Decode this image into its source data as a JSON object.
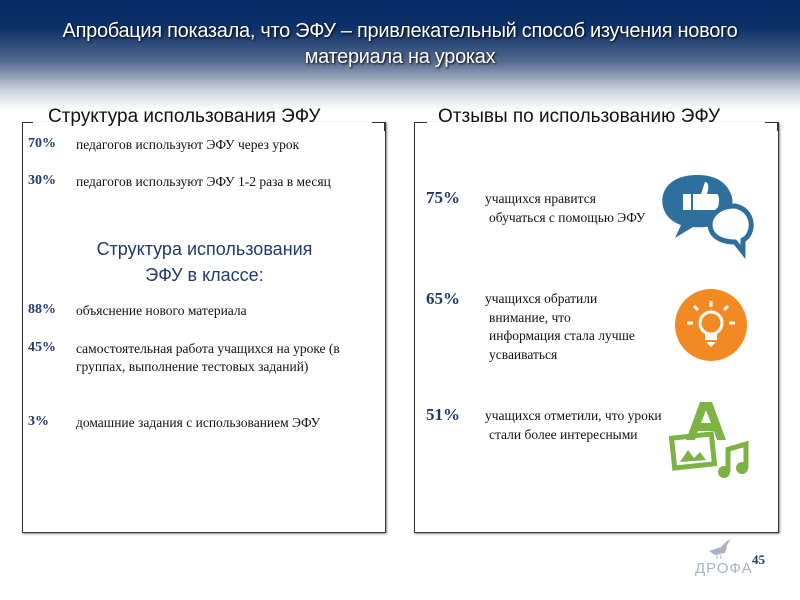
{
  "header": {
    "title": "Апробация показала, что ЭФУ – привлекательный способ изучения нового материала на уроках"
  },
  "left": {
    "title": "Структура использования ЭФУ",
    "items": [
      {
        "pct": "70%",
        "text": "педагогов используют ЭФУ через урок"
      },
      {
        "pct": "30%",
        "text": "педагогов используют ЭФУ 1-2 раза в месяц"
      }
    ],
    "subtitle": "Структура использования ЭФУ в классе:",
    "class_items": [
      {
        "pct": "88%",
        "text": "объяснение нового материала"
      },
      {
        "pct": "45%",
        "text": "самостоятельная работа учащихся на уроке (в группах, выполнение тестовых заданий)"
      },
      {
        "pct": "3%",
        "text": "домашние задания с использованием ЭФУ"
      }
    ]
  },
  "right": {
    "title": "Отзывы по использованию ЭФУ",
    "items": [
      {
        "pct": "75%",
        "text": "учащихся нравится обучаться с помощью ЭФУ",
        "icon": "like-chat-icon",
        "color": "#2e6f9e"
      },
      {
        "pct": "65%",
        "text": "учащихся обратили внимание, что информация стала лучше усваиваться",
        "icon": "lightbulb-icon",
        "color": "#f28a24"
      },
      {
        "pct": "51%",
        "text": "учащихся отметили, что уроки стали более интересными",
        "icon": "media-icon",
        "color": "#7cb342"
      }
    ]
  },
  "footer": {
    "page": "45",
    "logo": "ДРОФА"
  }
}
